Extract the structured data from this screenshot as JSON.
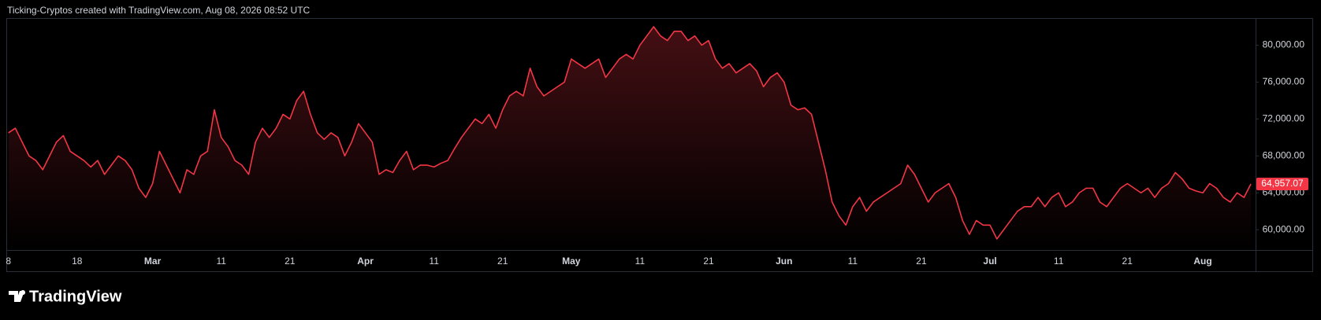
{
  "header": "Ticking-Cryptos created with TradingView.com, Aug 08, 2026 08:52 UTC",
  "logo": "TradingView",
  "chart_data": {
    "type": "area",
    "categories": [
      "8",
      null,
      null,
      null,
      null,
      null,
      null,
      null,
      null,
      null,
      "18",
      null,
      null,
      null,
      null,
      null,
      null,
      null,
      null,
      null,
      null,
      "Mar",
      null,
      null,
      null,
      null,
      null,
      null,
      null,
      null,
      null,
      "11",
      null,
      null,
      null,
      null,
      null,
      null,
      null,
      null,
      null,
      "21",
      null,
      null,
      null,
      null,
      null,
      null,
      null,
      null,
      null,
      null,
      "Apr",
      null,
      null,
      null,
      null,
      null,
      null,
      null,
      null,
      null,
      "11",
      null,
      null,
      null,
      null,
      null,
      null,
      null,
      null,
      null,
      "21",
      null,
      null,
      null,
      null,
      null,
      null,
      null,
      null,
      null,
      "May",
      null,
      null,
      null,
      null,
      null,
      null,
      null,
      null,
      null,
      "11",
      null,
      null,
      null,
      null,
      null,
      null,
      null,
      null,
      null,
      "21",
      null,
      null,
      null,
      null,
      null,
      null,
      null,
      null,
      null,
      null,
      "Jun",
      null,
      null,
      null,
      null,
      null,
      null,
      null,
      null,
      null,
      "11",
      null,
      null,
      null,
      null,
      null,
      null,
      null,
      null,
      null,
      "21",
      null,
      null,
      null,
      null,
      null,
      null,
      null,
      null,
      null,
      "Jul",
      null,
      null,
      null,
      null,
      null,
      null,
      null,
      null,
      null,
      "11",
      null,
      null,
      null,
      null,
      null,
      null,
      null,
      null,
      null,
      "21",
      null,
      null,
      null,
      null,
      null,
      null,
      null,
      null,
      null,
      null,
      "Aug",
      null,
      null,
      null,
      null,
      null,
      null,
      null
    ],
    "series": [
      {
        "color": "#f23645",
        "values": [
          70500,
          71000,
          69500,
          68000,
          67500,
          66500,
          68000,
          69500,
          70200,
          68500,
          68000,
          67500,
          66800,
          67500,
          66000,
          67000,
          68000,
          67500,
          66500,
          64500,
          63500,
          65000,
          68500,
          67000,
          65500,
          64000,
          66500,
          66000,
          68000,
          68500,
          73000,
          70000,
          69000,
          67500,
          67000,
          66000,
          69500,
          71000,
          70000,
          71000,
          72500,
          72000,
          74000,
          75000,
          72500,
          70500,
          69800,
          70500,
          70000,
          68000,
          69500,
          71500,
          70500,
          69500,
          66000,
          66500,
          66200,
          67500,
          68500,
          66500,
          67000,
          67000,
          66800,
          67200,
          67500,
          68800,
          70000,
          71000,
          72000,
          71500,
          72500,
          71000,
          73000,
          74500,
          75000,
          74500,
          77500,
          75500,
          74500,
          75000,
          75500,
          76000,
          78500,
          78000,
          77500,
          78000,
          78500,
          76500,
          77500,
          78500,
          79000,
          78500,
          80000,
          81000,
          82000,
          81000,
          80500,
          81500,
          81500,
          80500,
          81000,
          80000,
          80500,
          78500,
          77500,
          78000,
          77000,
          77500,
          78000,
          77200,
          75500,
          76500,
          77000,
          76000,
          73500,
          73000,
          73200,
          72500,
          69500,
          66500,
          63000,
          61500,
          60500,
          62500,
          63500,
          62000,
          63000,
          63500,
          64000,
          64500,
          65000,
          67000,
          66000,
          64500,
          63000,
          64000,
          64500,
          65000,
          63500,
          61000,
          59500,
          61000,
          60500,
          60500,
          59000,
          60000,
          61000,
          62000,
          62500,
          62500,
          63500,
          62500,
          63500,
          64000,
          62500,
          63000,
          64000,
          64500,
          64500,
          63000,
          62500,
          63500,
          64500,
          65000,
          64500,
          64000,
          64500,
          63500,
          64500,
          65000,
          66200,
          65500,
          64500,
          64200,
          64000,
          65000,
          64500,
          63500,
          63000,
          64000,
          63500,
          64957.07
        ]
      }
    ],
    "last_price": {
      "value": 64957.07,
      "label": "64,957.07"
    },
    "ylim": [
      57800,
      82850
    ],
    "yticks": [
      {
        "value": 60000,
        "label": "60,000.00"
      },
      {
        "value": 64000,
        "label": "64,000.00"
      },
      {
        "value": 68000,
        "label": "68,000.00"
      },
      {
        "value": 72000,
        "label": "72,000.00"
      },
      {
        "value": 76000,
        "label": "76,000.00"
      },
      {
        "value": 80000,
        "label": "80,000.00"
      }
    ],
    "grid": false
  }
}
